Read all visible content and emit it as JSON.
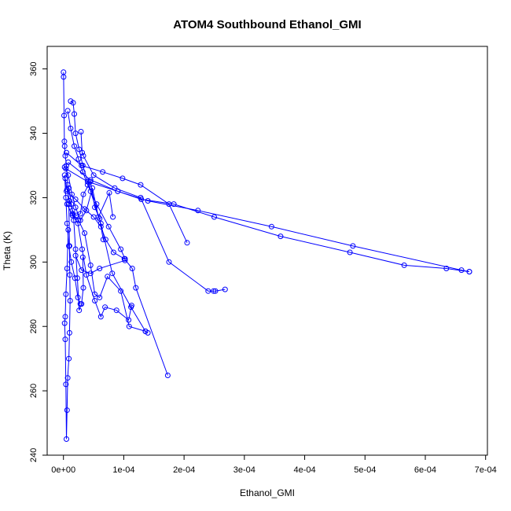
{
  "chart_data": {
    "type": "line",
    "title": "ATOM4 Southbound Ethanol_GMI",
    "xlabel": "Ethanol_GMI",
    "ylabel": "Theta (K)",
    "xlim": [
      -2.7e-05,
      0.000703
    ],
    "ylim": [
      240,
      367
    ],
    "x_ticks": [
      {
        "value": 0,
        "label": "0e+00"
      },
      {
        "value": 0.0001,
        "label": "1e-04"
      },
      {
        "value": 0.0002,
        "label": "2e-04"
      },
      {
        "value": 0.0003,
        "label": "3e-04"
      },
      {
        "value": 0.0004,
        "label": "4e-04"
      },
      {
        "value": 0.0005,
        "label": "5e-04"
      },
      {
        "value": 0.0006,
        "label": "6e-04"
      },
      {
        "value": 0.0007,
        "label": "7e-04"
      }
    ],
    "y_ticks": [
      {
        "value": 240,
        "label": "240"
      },
      {
        "value": 260,
        "label": "260"
      },
      {
        "value": 280,
        "label": "280"
      },
      {
        "value": 300,
        "label": "300"
      },
      {
        "value": 320,
        "label": "320"
      },
      {
        "value": 340,
        "label": "340"
      },
      {
        "value": 360,
        "label": "360"
      }
    ],
    "grid": false,
    "legend": "none",
    "series_color": "#0000ff",
    "series": [
      {
        "x": [
          1e-07,
          2e-07,
          1e-06,
          1.5e-06,
          2e-06,
          3e-06,
          5e-06,
          7e-06,
          9e-06,
          1e-05,
          1.05e-05,
          1.1e-05,
          1e-05,
          9e-06,
          7e-06,
          6e-06,
          5e-06,
          4e-06,
          3e-06,
          2e-06,
          3e-06,
          4e-06,
          6e-06,
          8e-06
        ],
        "y": [
          359.0,
          357.5,
          345.5,
          337.5,
          336.0,
          333.0,
          330.0,
          324.0,
          318.0,
          305.0,
          296.0,
          288.0,
          278.0,
          270.0,
          264.0,
          254.0,
          245.0,
          262.0,
          276.0,
          281.0,
          283.0,
          290.0,
          298.0,
          310.0
        ]
      },
      {
        "x": [
          7e-06,
          1.2e-05,
          1.8e-05,
          2.5e-05,
          3.2e-05,
          4e-05,
          5.5e-05,
          7.5e-05,
          9.5e-05,
          0.000102,
          0.000102,
          6e-05,
          4.5e-05,
          3e-05,
          2e-05
        ],
        "y": [
          347.0,
          341.5,
          336.0,
          332.0,
          328.0,
          324.0,
          318.0,
          311.0,
          304.0,
          301.0,
          300.5,
          298.0,
          296.5,
          297.5,
          302.0
        ]
      },
      {
        "x": [
          1.2e-05,
          1.6e-05,
          1.8e-05,
          2e-05,
          2.6e-05,
          3.2e-05,
          4.5e-05,
          6.2e-05,
          8.1e-05,
          0.000112,
          0.000136,
          0.00014
        ],
        "y": [
          350.0,
          349.5,
          346.0,
          340.0,
          335.0,
          330.0,
          322.0,
          312.0,
          296.5,
          286.0,
          278.5,
          278.0
        ]
      },
      {
        "x": [
          2.9e-05,
          3.1e-05,
          3.3e-05,
          5e-05,
          8.5e-05,
          0.000128,
          0.000175,
          0.00024,
          0.000249,
          0.000252,
          0.000268
        ],
        "y": [
          340.5,
          334.0,
          333.0,
          327.0,
          323.0,
          320.0,
          300.0,
          291.0,
          291.0,
          291.0,
          291.5
        ]
      },
      {
        "x": [
          5e-06,
          3e-05,
          6.5e-05,
          9.8e-05,
          0.000128,
          0.000175,
          0.000205
        ],
        "y": [
          334.0,
          330.0,
          328.0,
          326.0,
          324.0,
          318.0,
          306.0
        ]
      },
      {
        "x": [
          8e-06,
          4.5e-05,
          9e-05,
          0.000129,
          0.000183,
          0.00025,
          0.00036,
          0.000475,
          0.000565,
          0.000635,
          0.000673
        ],
        "y": [
          331.0,
          325.5,
          322.0,
          319.5,
          318.0,
          314.0,
          308.0,
          303.0,
          299.0,
          298.0,
          297.0
        ]
      },
      {
        "x": [
          4e-06,
          4e-05,
          9e-05,
          0.00014,
          0.000223,
          0.000345,
          0.00048,
          0.00066,
          0.000673
        ],
        "y": [
          329.0,
          325.0,
          322.0,
          319.0,
          316.0,
          311.0,
          305.0,
          297.5,
          297.0
        ]
      },
      {
        "x": [
          5e-06,
          2e-05,
          3.5e-05,
          5e-05,
          6.2e-05,
          7e-05,
          8.3e-05,
          0.000101,
          0.000114,
          0.00012,
          0.000173
        ],
        "y": [
          322.0,
          319.5,
          316.5,
          314.0,
          311.0,
          307.0,
          303.0,
          301.0,
          298.0,
          292.0,
          264.8
        ]
      },
      {
        "x": [
          6e-06,
          1.5e-05,
          2.4e-05,
          3.1e-05,
          3.8e-05,
          5.2e-05,
          6.2e-05,
          6.9e-05,
          8.8e-05,
          0.000108,
          0.000113
        ],
        "y": [
          318.0,
          314.5,
          312.0,
          304.0,
          296.0,
          288.0,
          283.0,
          286.0,
          285.0,
          282.0,
          286.5
        ]
      },
      {
        "x": [
          1.5e-05,
          2.5e-05,
          3.5e-05,
          4.5e-05,
          5.2e-05,
          6e-05,
          7.3e-05,
          9.5e-05,
          0.000109,
          0.000136
        ],
        "y": [
          315.0,
          313.0,
          309.0,
          299.0,
          290.0,
          289.0,
          295.5,
          291.0,
          280.0,
          278.5
        ]
      },
      {
        "x": [
          9e-06,
          1.3e-05,
          1.7e-05,
          2e-05,
          2.3e-05,
          2.6e-05,
          3e-05,
          3.3e-05,
          3.2e-05
        ],
        "y": [
          323.0,
          318.0,
          313.0,
          304.0,
          295.0,
          285.0,
          287.0,
          292.0,
          301.5
        ]
      },
      {
        "x": [
          2e-06,
          4e-06,
          6e-06,
          9e-06,
          1.3e-05,
          1.9e-05,
          2.4e-05,
          2.8e-05
        ],
        "y": [
          327.0,
          320.0,
          312.0,
          305.0,
          300.0,
          295.0,
          289.0,
          287.0
        ]
      },
      {
        "x": [
          3e-06,
          6e-06,
          1e-05,
          1.5e-05,
          2.1e-05,
          2.8e-05,
          3.3e-05,
          4.5e-05,
          5.2e-05,
          6e-05,
          6.6e-05
        ],
        "y": [
          326.0,
          322.5,
          319.0,
          316.0,
          314.5,
          315.0,
          321.0,
          325.0,
          317.0,
          313.5,
          307.0
        ]
      },
      {
        "x": [
          2e-06,
          8e-06,
          1.4e-05,
          2e-05,
          2.8e-05,
          3.8e-05,
          4.8e-05,
          5.8e-05,
          7.6e-05,
          8.2e-05
        ],
        "y": [
          329.5,
          327.0,
          321.0,
          317.0,
          313.0,
          316.0,
          323.0,
          314.0,
          321.5,
          314.0
        ]
      }
    ]
  }
}
